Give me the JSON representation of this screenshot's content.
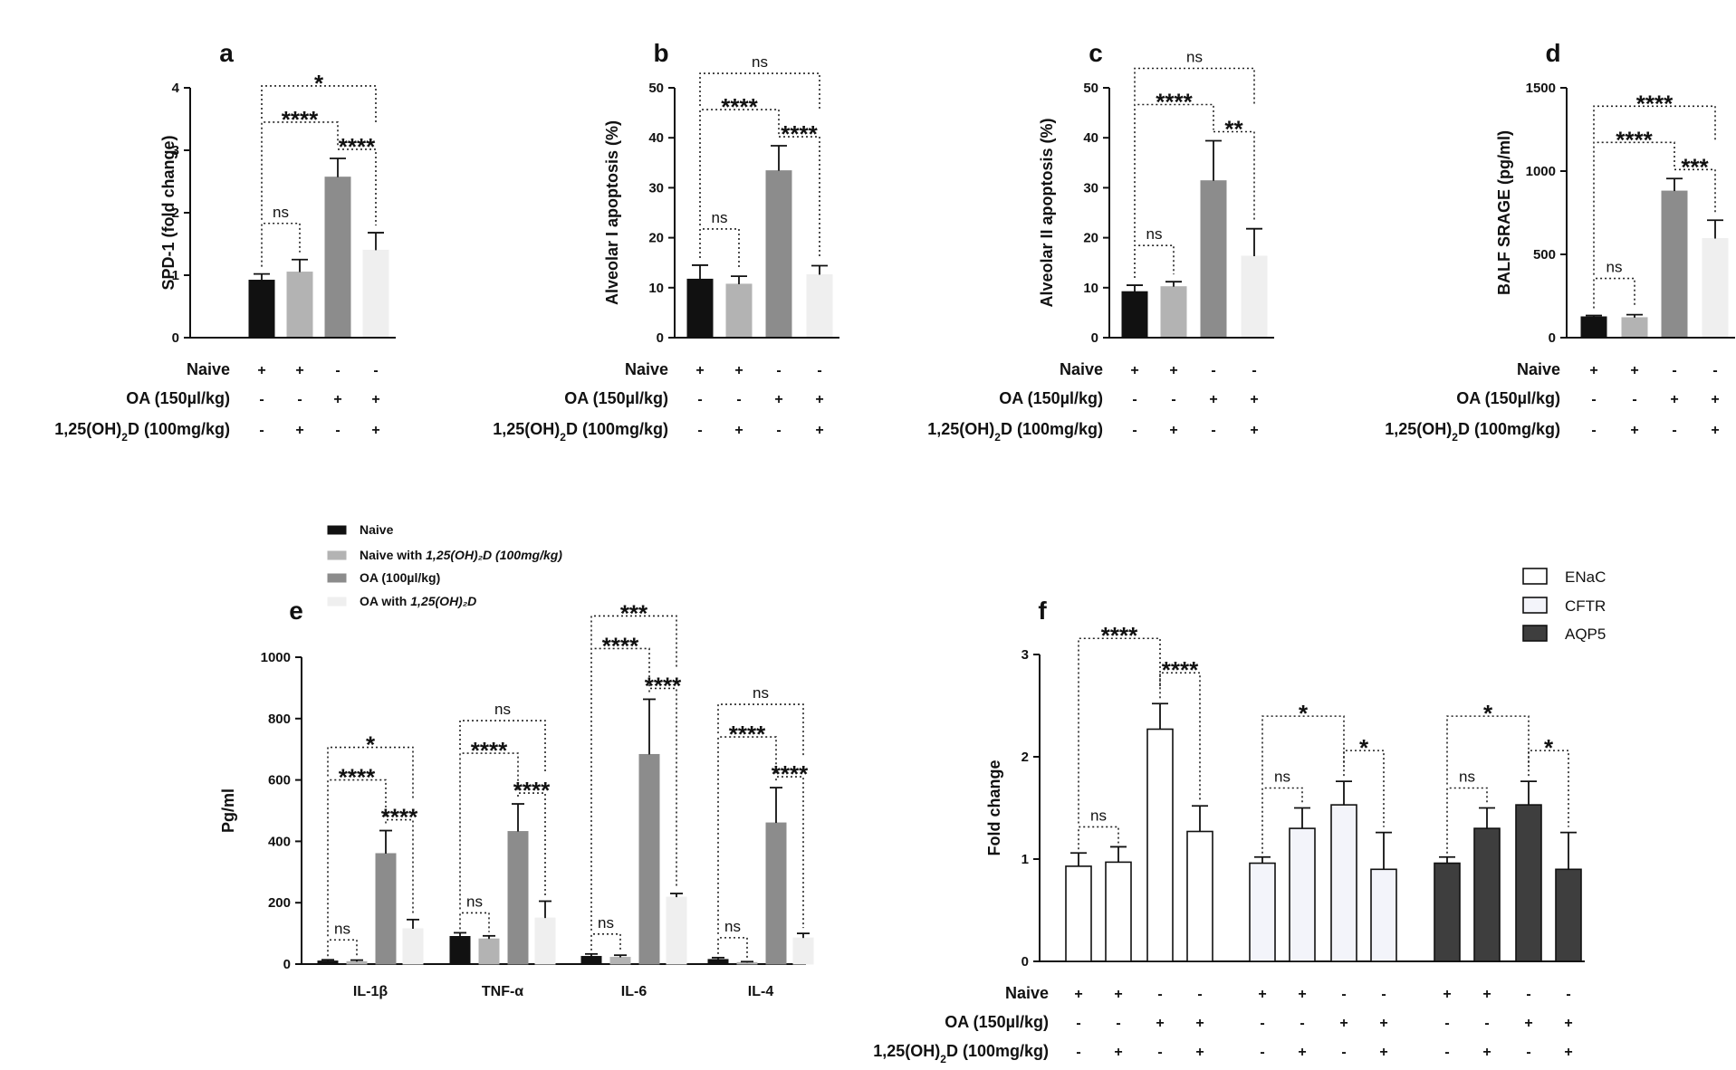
{
  "chart_data": [
    {
      "id": "a",
      "panel_label": "a",
      "type": "bar",
      "ylabel": "SPD-1 (fold change)",
      "ylim": [
        0,
        4
      ],
      "yticks": [
        "0",
        "1",
        "2",
        "3",
        "4"
      ],
      "categories": [
        "Naive",
        "Naive + 1,25(OH)2D",
        "OA",
        "OA + 1,25(OH)2D"
      ],
      "values": [
        0.92,
        1.05,
        2.57,
        1.4
      ],
      "errors": [
        0.1,
        0.2,
        0.3,
        0.28
      ],
      "colors": [
        "#111111",
        "#b3b3b3",
        "#8c8c8c",
        "#efefef"
      ],
      "significance": [
        {
          "from": 0,
          "to": 1,
          "label": "ns"
        },
        {
          "from": 0,
          "to": 2,
          "label": "****"
        },
        {
          "from": 2,
          "to": 3,
          "label": "****"
        },
        {
          "from": 0,
          "to": 3,
          "label": "*"
        }
      ],
      "conditions": [
        {
          "label": "Naive",
          "signs": [
            "+",
            "+",
            "-",
            "-"
          ]
        },
        {
          "label": "OA (150µl/kg)",
          "signs": [
            "-",
            "-",
            "+",
            "+"
          ]
        },
        {
          "label_pre": "1,25(OH)",
          "label_sub": "2",
          "label_post": "D (100mg/kg)",
          "signs": [
            "-",
            "+",
            "-",
            "+"
          ]
        }
      ]
    },
    {
      "id": "b",
      "panel_label": "b",
      "type": "bar",
      "ylabel": "Alveolar I apoptosis (%)",
      "ylim": [
        0,
        50
      ],
      "yticks": [
        "0",
        "10",
        "20",
        "30",
        "40",
        "50"
      ],
      "categories": [
        "Naive",
        "Naive + 1,25(OH)2D",
        "OA",
        "OA + 1,25(OH)2D"
      ],
      "values": [
        11.7,
        10.7,
        33.4,
        12.6
      ],
      "errors": [
        2.8,
        1.6,
        5.0,
        1.8
      ],
      "colors": [
        "#111111",
        "#b3b3b3",
        "#8c8c8c",
        "#efefef"
      ],
      "significance": [
        {
          "from": 0,
          "to": 1,
          "label": "ns"
        },
        {
          "from": 0,
          "to": 2,
          "label": "****"
        },
        {
          "from": 2,
          "to": 3,
          "label": "****"
        },
        {
          "from": 0,
          "to": 3,
          "label": "ns"
        }
      ],
      "conditions": [
        {
          "label": "Naive",
          "signs": [
            "+",
            "+",
            "-",
            "-"
          ]
        },
        {
          "label": "OA (150µl/kg)",
          "signs": [
            "-",
            "-",
            "+",
            "+"
          ]
        },
        {
          "label_pre": "1,25(OH)",
          "label_sub": "2",
          "label_post": "D (100mg/kg)",
          "signs": [
            "-",
            "+",
            "-",
            "+"
          ]
        }
      ]
    },
    {
      "id": "c",
      "panel_label": "c",
      "type": "bar",
      "ylabel": "Alveolar II apoptosis (%)",
      "ylim": [
        0,
        50
      ],
      "yticks": [
        "0",
        "10",
        "20",
        "30",
        "40",
        "50"
      ],
      "categories": [
        "Naive",
        "Naive + 1,25(OH)2D",
        "OA",
        "OA + 1,25(OH)2D"
      ],
      "values": [
        9.2,
        10.2,
        31.4,
        16.3
      ],
      "errors": [
        1.3,
        1.0,
        8.0,
        5.5
      ],
      "colors": [
        "#111111",
        "#b3b3b3",
        "#8c8c8c",
        "#efefef"
      ],
      "significance": [
        {
          "from": 0,
          "to": 1,
          "label": "ns"
        },
        {
          "from": 0,
          "to": 2,
          "label": "****"
        },
        {
          "from": 2,
          "to": 3,
          "label": "**"
        },
        {
          "from": 0,
          "to": 3,
          "label": "ns"
        }
      ],
      "conditions": [
        {
          "label": "Naive",
          "signs": [
            "+",
            "+",
            "-",
            "-"
          ]
        },
        {
          "label": "OA (150µl/kg)",
          "signs": [
            "-",
            "-",
            "+",
            "+"
          ]
        },
        {
          "label_pre": "1,25(OH)",
          "label_sub": "2",
          "label_post": "D (100mg/kg)",
          "signs": [
            "-",
            "+",
            "-",
            "+"
          ]
        }
      ]
    },
    {
      "id": "d",
      "panel_label": "d",
      "type": "bar",
      "ylabel": "BALF SRAGE (pg/ml)",
      "ylim": [
        0,
        1500
      ],
      "yticks": [
        "0",
        "500",
        "1000",
        "1500"
      ],
      "categories": [
        "Naive",
        "Naive + 1,25(OH)2D",
        "OA",
        "OA + 1,25(OH)2D"
      ],
      "values": [
        125,
        120,
        880,
        595
      ],
      "errors": [
        8,
        18,
        75,
        110
      ],
      "colors": [
        "#111111",
        "#b3b3b3",
        "#8c8c8c",
        "#efefef"
      ],
      "significance": [
        {
          "from": 0,
          "to": 1,
          "label": "ns"
        },
        {
          "from": 0,
          "to": 2,
          "label": "****"
        },
        {
          "from": 2,
          "to": 3,
          "label": "***"
        },
        {
          "from": 0,
          "to": 3,
          "label": "****"
        }
      ],
      "conditions": [
        {
          "label": "Naive",
          "signs": [
            "+",
            "+",
            "-",
            "-"
          ]
        },
        {
          "label": "OA (150µl/kg)",
          "signs": [
            "-",
            "-",
            "+",
            "+"
          ]
        },
        {
          "label_pre": "1,25(OH)",
          "label_sub": "2",
          "label_post": "D (100mg/kg)",
          "signs": [
            "-",
            "+",
            "-",
            "+"
          ]
        }
      ]
    },
    {
      "id": "e",
      "panel_label": "e",
      "type": "bar",
      "ylabel": "Pg/ml",
      "ylim": [
        0,
        1000
      ],
      "yticks": [
        "0",
        "200",
        "400",
        "600",
        "800",
        "1000"
      ],
      "categories": [
        "IL-1β",
        "TNF-α",
        "IL-6",
        "IL-4"
      ],
      "legend": [
        {
          "pre": "Naive",
          "it": "",
          "post": ""
        },
        {
          "pre": "Naive with ",
          "it": "1,25(OH)₂D  (100mg/kg)",
          "post": ""
        },
        {
          "pre": "OA (100µl/kg)",
          "it": "",
          "post": ""
        },
        {
          "pre": "OA  with ",
          "it": "1,25(OH)₂D",
          "post": ""
        }
      ],
      "series": [
        {
          "name": "Naive",
          "color": "#111111",
          "values": [
            10,
            90,
            25,
            15
          ],
          "errors": [
            4,
            12,
            8,
            6
          ]
        },
        {
          "name": "Naive with 1,25(OH)2D (100mg/kg)",
          "color": "#b3b3b3",
          "values": [
            8,
            82,
            22,
            5
          ],
          "errors": [
            5,
            10,
            7,
            3
          ]
        },
        {
          "name": "OA (100µl/kg)",
          "color": "#8c8c8c",
          "values": [
            360,
            432,
            683,
            460
          ],
          "errors": [
            75,
            90,
            180,
            115
          ]
        },
        {
          "name": "OA with 1,25(OH)2D",
          "color": "#efefef",
          "values": [
            115,
            150,
            218,
            85
          ],
          "errors": [
            30,
            55,
            12,
            15
          ]
        }
      ],
      "significance": [
        {
          "group": 0,
          "from": 0,
          "to": 1,
          "label": "ns"
        },
        {
          "group": 0,
          "from": 0,
          "to": 2,
          "label": "****"
        },
        {
          "group": 0,
          "from": 2,
          "to": 3,
          "label": "****"
        },
        {
          "group": 0,
          "from": 0,
          "to": 3,
          "label": "*"
        },
        {
          "group": 1,
          "from": 0,
          "to": 1,
          "label": "ns"
        },
        {
          "group": 1,
          "from": 0,
          "to": 2,
          "label": "****"
        },
        {
          "group": 1,
          "from": 2,
          "to": 3,
          "label": "****"
        },
        {
          "group": 1,
          "from": 0,
          "to": 3,
          "label": "ns"
        },
        {
          "group": 2,
          "from": 0,
          "to": 1,
          "label": "ns"
        },
        {
          "group": 2,
          "from": 0,
          "to": 2,
          "label": "****"
        },
        {
          "group": 2,
          "from": 2,
          "to": 3,
          "label": "****"
        },
        {
          "group": 2,
          "from": 0,
          "to": 3,
          "label": "***"
        },
        {
          "group": 3,
          "from": 0,
          "to": 1,
          "label": "ns"
        },
        {
          "group": 3,
          "from": 0,
          "to": 2,
          "label": "****"
        },
        {
          "group": 3,
          "from": 2,
          "to": 3,
          "label": "****"
        },
        {
          "group": 3,
          "from": 0,
          "to": 3,
          "label": "ns"
        }
      ]
    },
    {
      "id": "f",
      "panel_label": "f",
      "type": "bar",
      "ylabel": "Fold change",
      "ylim": [
        0,
        3
      ],
      "yticks": [
        "0",
        "1",
        "2",
        "3"
      ],
      "groups": [
        "ENaC",
        "CFTR",
        "AQP5"
      ],
      "legend": [
        "ENaC",
        "CFTR",
        "AQP5"
      ],
      "group_colors": [
        "#ffffff",
        "#f3f4fa",
        "#3e3e3e"
      ],
      "series": [
        {
          "name": "ENaC",
          "values": [
            0.93,
            0.97,
            2.27,
            1.27
          ],
          "errors": [
            0.13,
            0.15,
            0.25,
            0.25
          ]
        },
        {
          "name": "CFTR",
          "values": [
            0.96,
            1.3,
            1.53,
            0.9
          ],
          "errors": [
            0.06,
            0.2,
            0.23,
            0.36
          ]
        },
        {
          "name": "AQP5",
          "values": [
            0.96,
            1.3,
            1.53,
            0.9
          ],
          "errors": [
            0.06,
            0.2,
            0.23,
            0.36
          ]
        }
      ],
      "significance": [
        {
          "group": 0,
          "from": 0,
          "to": 1,
          "label": "ns"
        },
        {
          "group": 0,
          "from": 0,
          "to": 2,
          "label": "****"
        },
        {
          "group": 0,
          "from": 2,
          "to": 3,
          "label": "****"
        },
        {
          "group": 1,
          "from": 0,
          "to": 1,
          "label": "ns"
        },
        {
          "group": 1,
          "from": 0,
          "to": 2,
          "label": "*"
        },
        {
          "group": 1,
          "from": 2,
          "to": 3,
          "label": "*"
        },
        {
          "group": 2,
          "from": 0,
          "to": 1,
          "label": "ns"
        },
        {
          "group": 2,
          "from": 0,
          "to": 2,
          "label": "*"
        },
        {
          "group": 2,
          "from": 2,
          "to": 3,
          "label": "*"
        }
      ],
      "conditions": [
        {
          "label": "Naive",
          "signs": [
            "+",
            "+",
            "-",
            "-"
          ]
        },
        {
          "label": "OA (150µl/kg)",
          "signs": [
            "-",
            "-",
            "+",
            "+"
          ]
        },
        {
          "label_pre": "1,25(OH)",
          "label_sub": "2",
          "label_post": "D (100mg/kg)",
          "signs": [
            "-",
            "+",
            "-",
            "+"
          ]
        }
      ]
    }
  ]
}
